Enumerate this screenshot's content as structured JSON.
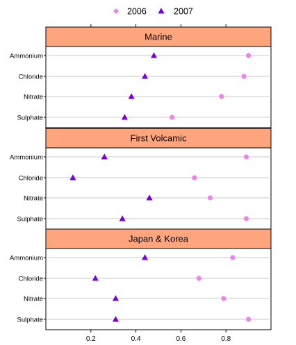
{
  "chart_data": {
    "type": "scatter",
    "legend": {
      "placement": "top",
      "entries": [
        {
          "name": "2006",
          "color": "#ee82ee",
          "marker": "diamond-dot"
        },
        {
          "name": "2007",
          "color": "#7700dd",
          "marker": "triangle"
        }
      ]
    },
    "categories": [
      "Ammonium",
      "Chloride",
      "Nitrate",
      "Sulphate"
    ],
    "xlim": [
      0,
      1.0
    ],
    "x_ticks": [
      0.2,
      0.4,
      0.6,
      0.8
    ],
    "x_tick_labels": [
      "0.2",
      "0.4",
      "0.6",
      "0.8"
    ],
    "grid": "horizontal",
    "panels": [
      {
        "title": "Marine",
        "series": [
          {
            "name": "2006",
            "values": [
              0.9,
              0.88,
              0.78,
              0.56
            ]
          },
          {
            "name": "2007",
            "values": [
              0.48,
              0.44,
              0.38,
              0.35
            ]
          }
        ]
      },
      {
        "title": "First Volcamic",
        "series": [
          {
            "name": "2006",
            "values": [
              0.89,
              0.66,
              0.73,
              0.89
            ]
          },
          {
            "name": "2007",
            "values": [
              0.26,
              0.12,
              0.46,
              0.34
            ]
          }
        ]
      },
      {
        "title": "Japan & Korea",
        "series": [
          {
            "name": "2006",
            "values": [
              0.83,
              0.68,
              0.79,
              0.9
            ]
          },
          {
            "name": "2007",
            "values": [
              0.44,
              0.22,
              0.31,
              0.31
            ]
          }
        ]
      }
    ]
  }
}
